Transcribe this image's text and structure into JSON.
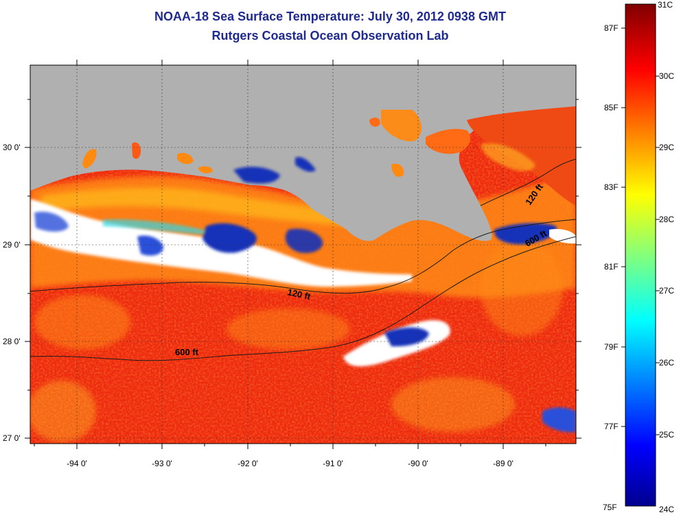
{
  "title_line1": "NOAA-18 Sea Surface Temperature:  July 30, 2012 0938 GMT",
  "title_line2": "Rutgers Coastal Ocean Observation Lab",
  "map": {
    "lat_labels": [
      "30 0'",
      "29 0'",
      "28 0'",
      "27 0'"
    ],
    "lon_labels": [
      "-94 0'",
      "-93 0'",
      "-92 0'",
      "-91 0'",
      "-90 0'",
      "-89 0'"
    ],
    "contour_labels": {
      "c600_west": "600 ft",
      "c120_mid": "120 ft",
      "c120_east": "120 ft",
      "c600_east": "600 ft"
    },
    "colors": {
      "land": "#b0b0b0",
      "cloud": "#ffffff",
      "sst_warm": "#ee2a10",
      "sst_mid": "#ff8a12",
      "sst_cool": "#1530b8"
    }
  },
  "colorbar": {
    "celsius_labels": [
      "31C",
      "30C",
      "29C",
      "28C",
      "27C",
      "26C",
      "25C",
      "24C"
    ],
    "fahrenheit_labels": [
      "87F",
      "85F",
      "83F",
      "81F",
      "79F",
      "77F",
      "75F"
    ],
    "colormap": "jet"
  }
}
